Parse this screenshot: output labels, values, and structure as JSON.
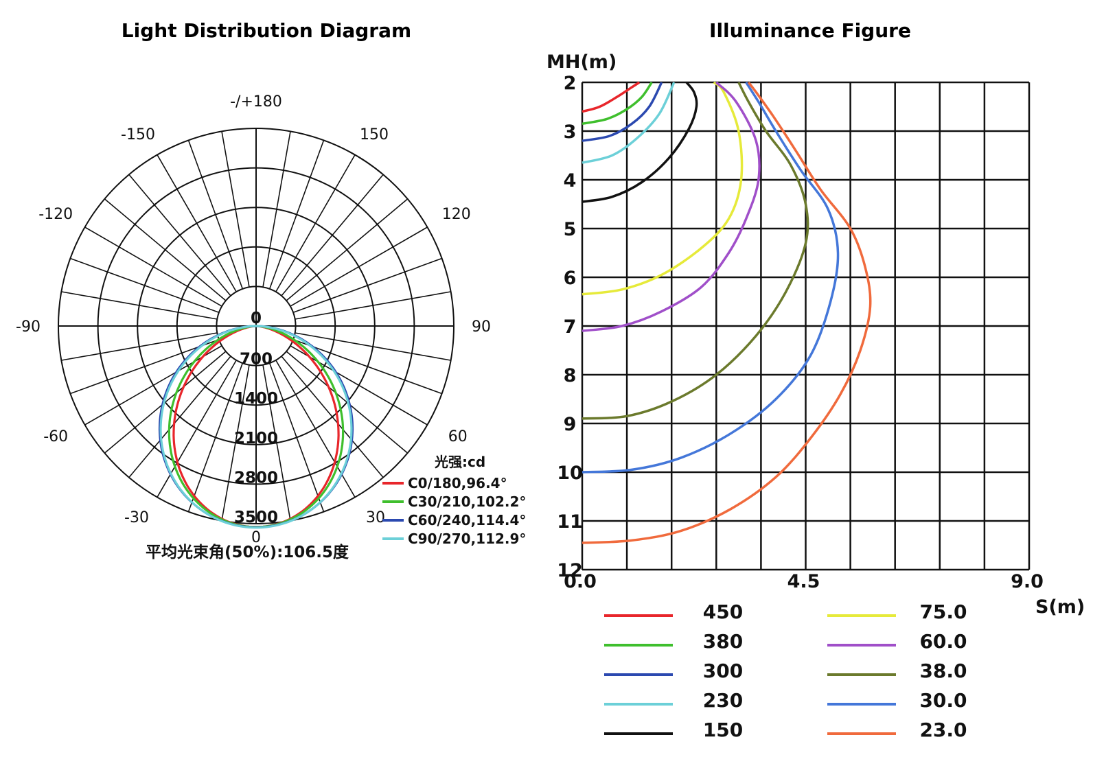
{
  "chart_data": [
    {
      "type": "polar",
      "title": "Light Distribution Diagram",
      "angle_labels": [
        {
          "angle": 180,
          "text": "-/+180"
        },
        {
          "angle": -150,
          "text": "-150"
        },
        {
          "angle": 150,
          "text": "150"
        },
        {
          "angle": -120,
          "text": "-120"
        },
        {
          "angle": 120,
          "text": "120"
        },
        {
          "angle": -90,
          "text": "-90"
        },
        {
          "angle": 90,
          "text": "90"
        },
        {
          "angle": -60,
          "text": "-60"
        },
        {
          "angle": 60,
          "text": "60"
        },
        {
          "angle": -30,
          "text": "-30"
        },
        {
          "angle": 30,
          "text": "30"
        },
        {
          "angle": 0,
          "text": "0"
        }
      ],
      "radial_ticks": [
        "0",
        "700",
        "1400",
        "2100",
        "2800",
        "3500"
      ],
      "radial_values": [
        0,
        700,
        1400,
        2100,
        2800,
        3500
      ],
      "rmax": 3500,
      "unit_label": "光强:cd",
      "beam_angle_label": "平均光束角(50%):106.5度",
      "series": [
        {
          "name": "C0/180,96.4°",
          "color": "#e8262b",
          "beam_angle": 96.4,
          "peak": 3560
        },
        {
          "name": "C30/210,102.2°",
          "color": "#3fbf2d",
          "beam_angle": 102.2,
          "peak": 3560
        },
        {
          "name": "C60/240,114.4°",
          "color": "#2b49b0",
          "beam_angle": 114.4,
          "peak": 3565
        },
        {
          "name": "C90/270,112.9°",
          "color": "#6cd0d8",
          "beam_angle": 112.9,
          "peak": 3570
        }
      ]
    },
    {
      "type": "line",
      "title": "Illuminance Figure",
      "ylabel": "MH(m)",
      "xlabel": "S(m)",
      "xlim": [
        0,
        9
      ],
      "ylim": [
        2,
        12
      ],
      "x_ticks": [
        "0.0",
        "4.5",
        "9.0"
      ],
      "y_ticks": [
        "2",
        "3",
        "4",
        "5",
        "6",
        "7",
        "8",
        "9",
        "10",
        "11",
        "12"
      ],
      "series": [
        {
          "name": "450",
          "color": "#e8262b",
          "points": [
            [
              0,
              2.6
            ],
            [
              0.35,
              2.5
            ],
            [
              0.7,
              2.3
            ],
            [
              1.0,
              2.1
            ],
            [
              1.15,
              2.0
            ]
          ]
        },
        {
          "name": "380",
          "color": "#3fbf2d",
          "points": [
            [
              0,
              2.85
            ],
            [
              0.5,
              2.75
            ],
            [
              0.9,
              2.55
            ],
            [
              1.2,
              2.3
            ],
            [
              1.4,
              2.0
            ]
          ]
        },
        {
          "name": "300",
          "color": "#2b49b0",
          "points": [
            [
              0,
              3.2
            ],
            [
              0.55,
              3.1
            ],
            [
              1.0,
              2.85
            ],
            [
              1.35,
              2.5
            ],
            [
              1.6,
              2.0
            ]
          ]
        },
        {
          "name": "230",
          "color": "#6cd0d8",
          "points": [
            [
              0,
              3.65
            ],
            [
              0.6,
              3.5
            ],
            [
              1.1,
              3.15
            ],
            [
              1.55,
              2.65
            ],
            [
              1.85,
              2.0
            ]
          ]
        },
        {
          "name": "150",
          "color": "#111111",
          "points": [
            [
              0,
              4.45
            ],
            [
              0.6,
              4.35
            ],
            [
              1.2,
              4.05
            ],
            [
              1.75,
              3.55
            ],
            [
              2.15,
              2.95
            ],
            [
              2.3,
              2.5
            ],
            [
              2.25,
              2.2
            ],
            [
              2.1,
              2.0
            ]
          ]
        },
        {
          "name": "75.0",
          "color": "#e6ea3a",
          "points": [
            [
              0,
              6.35
            ],
            [
              0.8,
              6.25
            ],
            [
              1.6,
              5.95
            ],
            [
              2.4,
              5.4
            ],
            [
              2.95,
              4.8
            ],
            [
              3.2,
              4.0
            ],
            [
              3.15,
              3.0
            ],
            [
              2.85,
              2.2
            ],
            [
              2.65,
              2.0
            ]
          ]
        },
        {
          "name": "60.0",
          "color": "#a04fc9",
          "points": [
            [
              0,
              7.1
            ],
            [
              0.8,
              7.0
            ],
            [
              1.6,
              6.7
            ],
            [
              2.4,
              6.2
            ],
            [
              2.95,
              5.5
            ],
            [
              3.3,
              4.8
            ],
            [
              3.55,
              4.0
            ],
            [
              3.5,
              3.2
            ],
            [
              3.1,
              2.4
            ],
            [
              2.7,
              2.0
            ]
          ]
        },
        {
          "name": "38.0",
          "color": "#6b7a2c",
          "points": [
            [
              0,
              8.9
            ],
            [
              0.9,
              8.85
            ],
            [
              1.8,
              8.55
            ],
            [
              2.7,
              8.0
            ],
            [
              3.5,
              7.2
            ],
            [
              4.1,
              6.3
            ],
            [
              4.5,
              5.3
            ],
            [
              4.5,
              4.5
            ],
            [
              4.2,
              3.7
            ],
            [
              3.7,
              3.0
            ],
            [
              3.35,
              2.4
            ],
            [
              3.15,
              2.0
            ]
          ]
        },
        {
          "name": "30.0",
          "color": "#4477d9",
          "points": [
            [
              0,
              10.0
            ],
            [
              1.0,
              9.95
            ],
            [
              2.0,
              9.7
            ],
            [
              3.0,
              9.2
            ],
            [
              3.9,
              8.5
            ],
            [
              4.6,
              7.6
            ],
            [
              5.0,
              6.5
            ],
            [
              5.15,
              5.5
            ],
            [
              4.95,
              4.6
            ],
            [
              4.4,
              3.8
            ],
            [
              3.9,
              3.0
            ],
            [
              3.55,
              2.4
            ],
            [
              3.3,
              2.0
            ]
          ]
        },
        {
          "name": "23.0",
          "color": "#f06a3c",
          "points": [
            [
              0,
              11.45
            ],
            [
              1.0,
              11.4
            ],
            [
              2.0,
              11.2
            ],
            [
              3.0,
              10.75
            ],
            [
              3.9,
              10.1
            ],
            [
              4.6,
              9.3
            ],
            [
              5.2,
              8.4
            ],
            [
              5.6,
              7.5
            ],
            [
              5.8,
              6.6
            ],
            [
              5.7,
              5.8
            ],
            [
              5.4,
              5.0
            ],
            [
              4.8,
              4.2
            ],
            [
              4.3,
              3.4
            ],
            [
              3.85,
              2.7
            ],
            [
              3.5,
              2.2
            ],
            [
              3.35,
              2.0
            ]
          ]
        }
      ]
    }
  ]
}
